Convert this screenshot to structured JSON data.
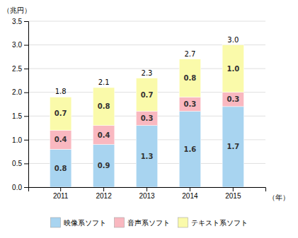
{
  "chart_data": {
    "type": "bar",
    "stacked": true,
    "categories": [
      "2011",
      "2012",
      "2013",
      "2014",
      "2015"
    ],
    "series": [
      {
        "name": "映像系ソフト",
        "color": "#a8d4f0",
        "values": [
          0.8,
          0.9,
          1.3,
          1.6,
          1.7
        ]
      },
      {
        "name": "音声系ソフト",
        "color": "#f9b8c0",
        "values": [
          0.4,
          0.4,
          0.3,
          0.3,
          0.3
        ]
      },
      {
        "name": "テキスト系ソフト",
        "color": "#fafaaa",
        "values": [
          0.7,
          0.8,
          0.7,
          0.8,
          1.0
        ],
        "value_labels": [
          "0.7",
          "0.8",
          "0.7",
          "0.8",
          "1.0"
        ]
      }
    ],
    "totals": {
      "values": [
        1.8,
        2.1,
        2.3,
        2.7,
        3.0
      ],
      "value_labels": [
        "1.8",
        "2.1",
        "2.3",
        "2.7",
        "3.0"
      ]
    },
    "data_labels": true,
    "ylabel": "（兆円）",
    "xlabel": "（年）",
    "ylim": [
      0.0,
      3.5
    ],
    "yticks": [
      {
        "value": 0,
        "label": "0.0"
      },
      0.5,
      {
        "value": 1,
        "label": "1.0"
      },
      1.5,
      {
        "value": 2,
        "label": "2.0"
      },
      2.5,
      {
        "value": 3,
        "label": "3.0"
      },
      3.5
    ],
    "grid": true,
    "legend": "bottom"
  }
}
